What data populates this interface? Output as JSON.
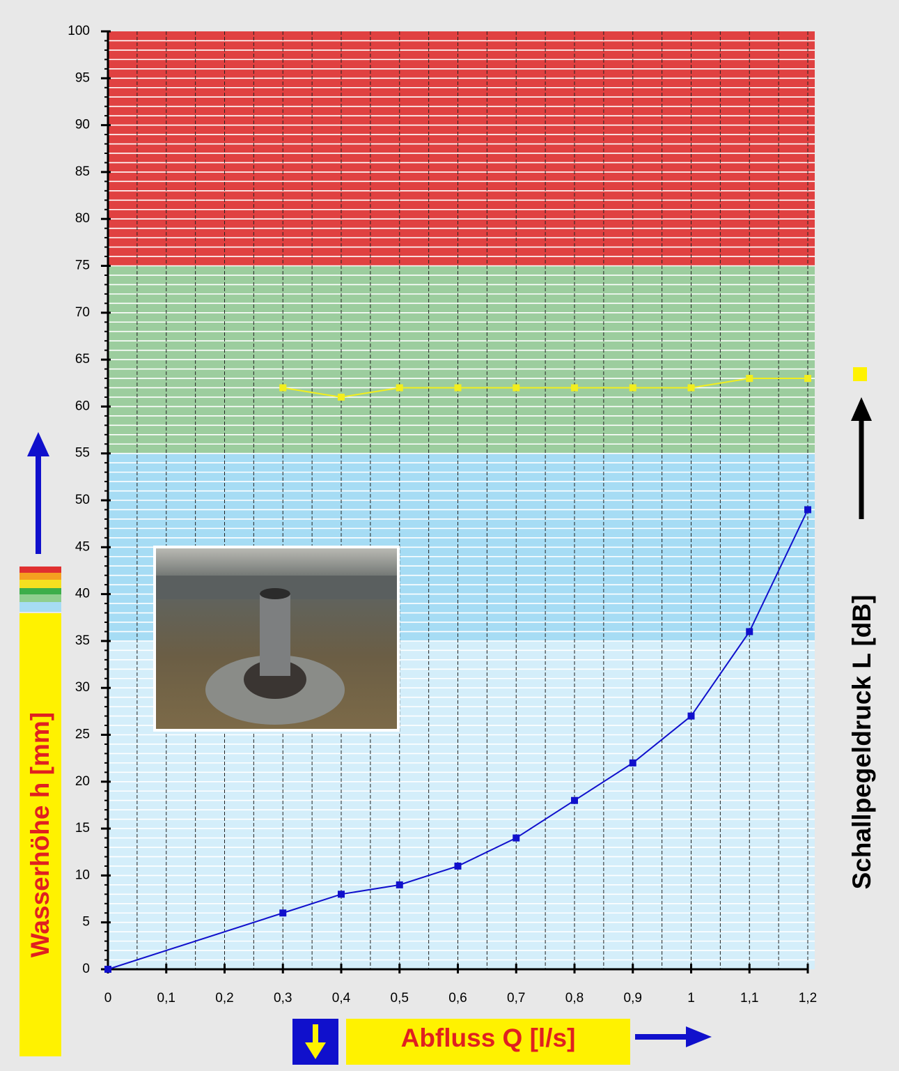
{
  "chart_data": {
    "type": "line",
    "x_label": "Abfluss Q [l/s]",
    "y_label": "Wasserhöhe h [mm]",
    "y2_label": "Schallpegeldruck L [dB]",
    "xlim": [
      0,
      1.2
    ],
    "ylim": [
      0,
      100
    ],
    "xticks": [
      0,
      {
        "value": 0.1,
        "label": "0,1"
      },
      {
        "value": 0.2,
        "label": "0,2"
      },
      {
        "value": 0.3,
        "label": "0,3"
      },
      {
        "value": 0.4,
        "label": "0,4"
      },
      {
        "value": 0.5,
        "label": "0,5"
      },
      {
        "value": 0.6,
        "label": "0,6"
      },
      {
        "value": 0.7,
        "label": "0,7"
      },
      {
        "value": 0.8,
        "label": "0,8"
      },
      {
        "value": 0.9,
        "label": "0,9"
      },
      1,
      {
        "value": 1.1,
        "label": "1,1"
      },
      {
        "value": 1.2,
        "label": "1,2"
      }
    ],
    "yticks": [
      0,
      5,
      10,
      15,
      20,
      25,
      30,
      35,
      40,
      45,
      50,
      55,
      60,
      65,
      70,
      75,
      80,
      85,
      90,
      95,
      100
    ],
    "zones": [
      {
        "from": 0,
        "to": 35,
        "color": "#d4eefa"
      },
      {
        "from": 35,
        "to": 55,
        "color": "#a6dcf4"
      },
      {
        "from": 55,
        "to": 75,
        "color": "#9ccd9e"
      },
      {
        "from": 75,
        "to": 100,
        "color": "#e04141"
      }
    ],
    "series": [
      {
        "color": "#1010cc",
        "x": [
          0,
          0.3,
          0.4,
          0.5,
          0.6,
          0.7,
          0.8,
          0.9,
          1,
          1.1,
          1.2
        ],
        "values": [
          0,
          6,
          8,
          9,
          11,
          14,
          18,
          22,
          27,
          36,
          49
        ]
      },
      {
        "color": "#f2ee1e",
        "x": [
          0.3,
          0.4,
          0.5,
          0.6,
          0.7,
          0.8,
          0.9,
          1,
          1.1,
          1.2
        ],
        "values": [
          62,
          61,
          62,
          62,
          62,
          62,
          62,
          62,
          63,
          63
        ]
      }
    ]
  }
}
